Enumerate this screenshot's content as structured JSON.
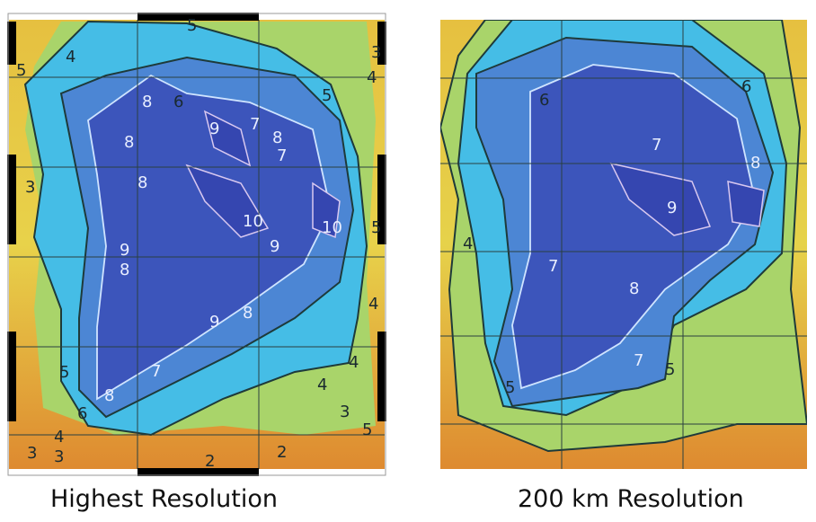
{
  "panels": [
    {
      "caption": "Highest Resolution",
      "contour_labels": [
        {
          "text": "5",
          "tone": "dark"
        },
        {
          "text": "4",
          "tone": "dark"
        },
        {
          "text": "3",
          "tone": "dark"
        },
        {
          "text": "4",
          "tone": "dark"
        },
        {
          "text": "5",
          "tone": "dark"
        },
        {
          "text": "6",
          "tone": "dark"
        },
        {
          "text": "5",
          "tone": "dark"
        },
        {
          "text": "3",
          "tone": "dark"
        },
        {
          "text": "8",
          "tone": "light"
        },
        {
          "text": "8",
          "tone": "light"
        },
        {
          "text": "9",
          "tone": "light"
        },
        {
          "text": "7",
          "tone": "light"
        },
        {
          "text": "8",
          "tone": "light"
        },
        {
          "text": "7",
          "tone": "light"
        },
        {
          "text": "8",
          "tone": "light"
        },
        {
          "text": "10",
          "tone": "light"
        },
        {
          "text": "9",
          "tone": "light"
        },
        {
          "text": "10",
          "tone": "light"
        },
        {
          "text": "9",
          "tone": "light"
        },
        {
          "text": "8",
          "tone": "light"
        },
        {
          "text": "9",
          "tone": "light"
        },
        {
          "text": "8",
          "tone": "light"
        },
        {
          "text": "7",
          "tone": "light"
        },
        {
          "text": "8",
          "tone": "light"
        },
        {
          "text": "5",
          "tone": "dark"
        },
        {
          "text": "6",
          "tone": "dark"
        },
        {
          "text": "4",
          "tone": "dark"
        },
        {
          "text": "3",
          "tone": "dark"
        },
        {
          "text": "3",
          "tone": "dark"
        },
        {
          "text": "3",
          "tone": "dark"
        },
        {
          "text": "2",
          "tone": "dark"
        },
        {
          "text": "2",
          "tone": "dark"
        },
        {
          "text": "4",
          "tone": "dark"
        },
        {
          "text": "4",
          "tone": "dark"
        },
        {
          "text": "5",
          "tone": "dark"
        },
        {
          "text": "5",
          "tone": "dark"
        },
        {
          "text": "4",
          "tone": "dark"
        }
      ]
    },
    {
      "caption": "200 km Resolution",
      "contour_labels": [
        {
          "text": "6",
          "tone": "dark"
        },
        {
          "text": "6",
          "tone": "dark"
        },
        {
          "text": "4",
          "tone": "dark"
        },
        {
          "text": "7",
          "tone": "light"
        },
        {
          "text": "8",
          "tone": "light"
        },
        {
          "text": "9",
          "tone": "light"
        },
        {
          "text": "7",
          "tone": "light"
        },
        {
          "text": "8",
          "tone": "light"
        },
        {
          "text": "7",
          "tone": "light"
        },
        {
          "text": "5",
          "tone": "dark"
        },
        {
          "text": "5",
          "tone": "dark"
        }
      ]
    }
  ],
  "colors": {
    "deep": "#3a4fb8",
    "blue": "#4a7fd0",
    "cyan": "#3fb8e0",
    "green": "#a8d070",
    "yellow": "#e8d040",
    "orange": "#e09030",
    "contour_dark": "#1e3a3a",
    "contour_light": "#cfe4ff"
  }
}
